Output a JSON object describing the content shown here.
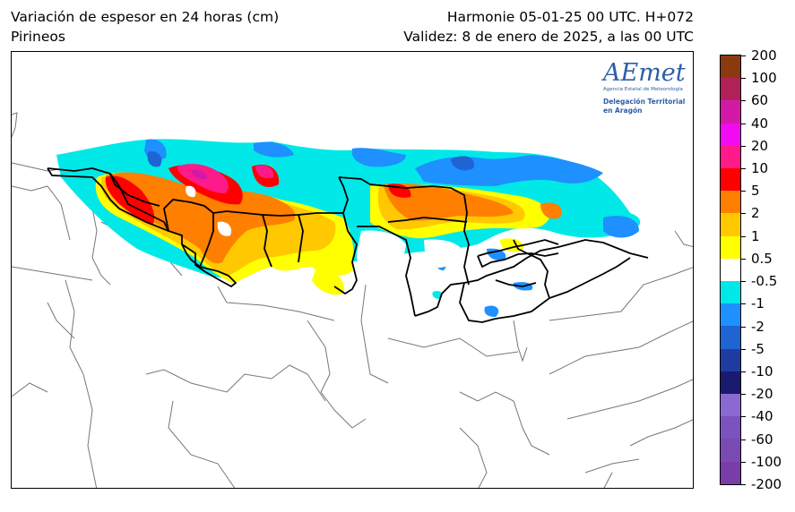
{
  "header": {
    "title_left": "Variación de espesor en 24 horas (cm)",
    "subtitle_left": "Pirineos",
    "title_right": "Harmonie 05-01-25 00 UTC. H+072",
    "subtitle_right": "Validez: 8 de enero de 2025, a las 00 UTC"
  },
  "logo": {
    "word": "AEmet",
    "agency": "Agencia Estatal de Meteorología",
    "delegation_line1": "Delegación Territorial",
    "delegation_line2": "en Aragón"
  },
  "colorbar": {
    "labels": [
      "200",
      "100",
      "60",
      "40",
      "20",
      "10",
      "5",
      "2",
      "1",
      "0.5",
      "-0.5",
      "-1",
      "-2",
      "-5",
      "-10",
      "-20",
      "-40",
      "-60",
      "-100",
      "-200"
    ],
    "colors": [
      "#8b3a0f",
      "#b0215a",
      "#d21aa6",
      "#f20af2",
      "#ff1a8c",
      "#ff0000",
      "#ff7f00",
      "#ffc800",
      "#ffff00",
      "#ffffff",
      "#00e8e8",
      "#1e90ff",
      "#1e64d2",
      "#1e3ca0",
      "#1a1a6e",
      "#8a6ad2",
      "#7b52c0",
      "#7a4ab4",
      "#7a3ca8"
    ]
  },
  "colors": {
    "frame": "#000000",
    "borders_thin": "#777777",
    "region_border": "#000000"
  }
}
